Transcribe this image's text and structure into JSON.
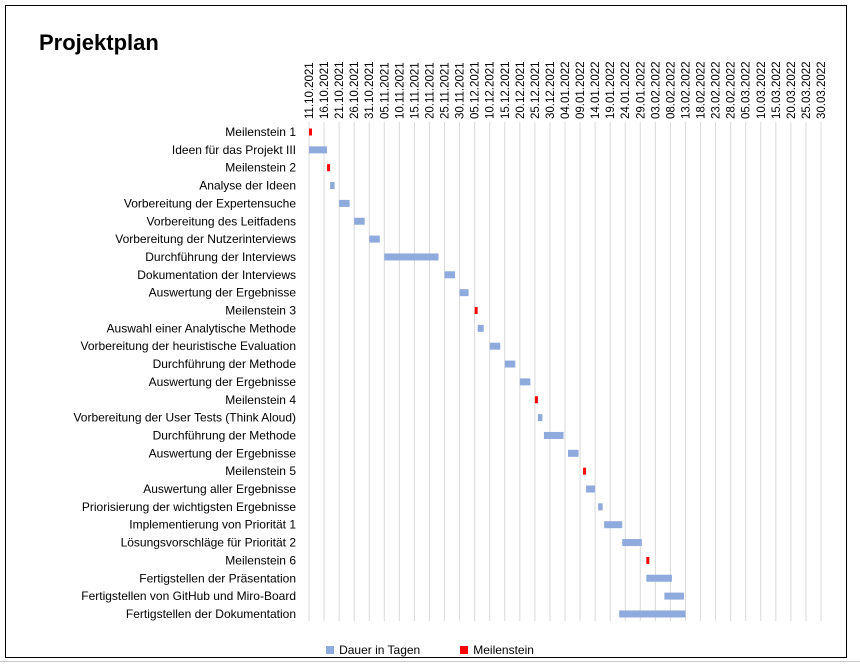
{
  "chart_data": {
    "type": "bar",
    "orientation": "horizontal-gantt",
    "title": "Projektplan",
    "xlabel": "",
    "ylabel": "",
    "x_start": "2021-10-11",
    "x_end": "2022-03-30",
    "x_ticks": [
      "11.10.2021",
      "16.10.2021",
      "21.10.2021",
      "26.10.2021",
      "31.10.2021",
      "05.11.2021",
      "10.11.2021",
      "15.11.2021",
      "20.11.2021",
      "25.11.2021",
      "30.11.2021",
      "05.12.2021",
      "10.12.2021",
      "15.12.2021",
      "20.12.2021",
      "25.12.2021",
      "30.12.2021",
      "04.01.2022",
      "09.01.2022",
      "14.01.2022",
      "19.01.2022",
      "24.01.2022",
      "29.01.2022",
      "03.02.2022",
      "08.02.2022",
      "13.02.2022",
      "18.02.2022",
      "23.02.2022",
      "28.02.2022",
      "05.03.2022",
      "10.03.2022",
      "15.03.2022",
      "20.03.2022",
      "25.03.2022",
      "30.03.2022"
    ],
    "grid": true,
    "legend_position": "bottom",
    "legend": [
      {
        "name": "Dauer in Tagen",
        "color": "#8faadc"
      },
      {
        "name": "Meilenstein",
        "color": "#ff0000"
      }
    ],
    "tasks": [
      {
        "label": "Meilenstein 1",
        "start": "2021-10-11",
        "duration": 0,
        "milestone": true
      },
      {
        "label": "Ideen für das Projekt III",
        "start": "2021-10-11",
        "duration": 6
      },
      {
        "label": "Meilenstein 2",
        "start": "2021-10-17",
        "duration": 0,
        "milestone": true
      },
      {
        "label": "Analyse der Ideen",
        "start": "2021-10-18",
        "duration": 1.5
      },
      {
        "label": "Vorbereitung der Expertensuche",
        "start": "2021-10-21",
        "duration": 3.5
      },
      {
        "label": "Vorbereitung des Leitfadens",
        "start": "2021-10-26",
        "duration": 3.5
      },
      {
        "label": "Vorbereitung der Nutzerinterviews",
        "start": "2021-10-31",
        "duration": 3.5
      },
      {
        "label": "Durchführung der Interviews",
        "start": "2021-11-05",
        "duration": 18
      },
      {
        "label": "Dokumentation der Interviews",
        "start": "2021-11-25",
        "duration": 3.5
      },
      {
        "label": "Auswertung der Ergebnisse",
        "start": "2021-11-30",
        "duration": 3
      },
      {
        "label": "Meilenstein 3",
        "start": "2021-12-05",
        "duration": 0,
        "milestone": true
      },
      {
        "label": "Auswahl einer Analytische Methode",
        "start": "2021-12-06",
        "duration": 2
      },
      {
        "label": "Vorbereitung der heuristische Evaluation",
        "start": "2021-12-10",
        "duration": 3.5
      },
      {
        "label": "Durchführung der Methode",
        "start": "2021-12-15",
        "duration": 3.5
      },
      {
        "label": "Auswertung der Ergebnisse",
        "start": "2021-12-20",
        "duration": 3.5
      },
      {
        "label": "Meilenstein 4",
        "start": "2021-12-25",
        "duration": 0,
        "milestone": true
      },
      {
        "label": "Vorbereitung der User Tests (Think Aloud)",
        "start": "2021-12-26",
        "duration": 1.5
      },
      {
        "label": "Durchführung der Methode",
        "start": "2021-12-28",
        "duration": 6.5
      },
      {
        "label": "Auswertung der Ergebnisse",
        "start": "2022-01-05",
        "duration": 3.5
      },
      {
        "label": "Meilenstein 5",
        "start": "2022-01-10",
        "duration": 0,
        "milestone": true
      },
      {
        "label": "Auswertung aller Ergebnisse",
        "start": "2022-01-11",
        "duration": 3
      },
      {
        "label": "Priorisierung der wichtigsten Ergebnisse",
        "start": "2022-01-15",
        "duration": 1.5
      },
      {
        "label": "Implementierung von Priorität 1",
        "start": "2022-01-17",
        "duration": 6
      },
      {
        "label": "Lösungsvorschläge für Priorität 2",
        "start": "2022-01-23",
        "duration": 6.5
      },
      {
        "label": "Meilenstein 6",
        "start": "2022-01-31",
        "duration": 0,
        "milestone": true
      },
      {
        "label": "Fertigstellen der Präsentation",
        "start": "2022-01-31",
        "duration": 8.5
      },
      {
        "label": "Fertigstellen von GitHub und Miro-Board",
        "start": "2022-02-06",
        "duration": 6.5
      },
      {
        "label": "Fertigstellen der Dokumentation",
        "start": "2022-01-22",
        "duration": 22
      }
    ]
  }
}
